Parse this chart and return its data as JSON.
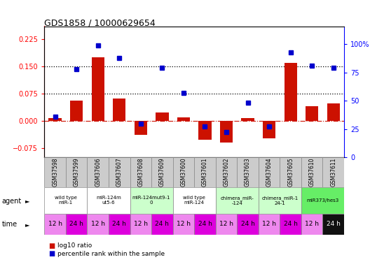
{
  "title": "GDS1858 / 10000629654",
  "samples": [
    "GSM37598",
    "GSM37599",
    "GSM37606",
    "GSM37607",
    "GSM37608",
    "GSM37609",
    "GSM37600",
    "GSM37601",
    "GSM37602",
    "GSM37603",
    "GSM37604",
    "GSM37605",
    "GSM37610",
    "GSM37611"
  ],
  "log10_ratio": [
    0.008,
    0.055,
    0.175,
    0.062,
    -0.038,
    0.022,
    0.01,
    -0.052,
    -0.06,
    0.008,
    -0.048,
    0.16,
    0.04,
    0.048
  ],
  "percentile_rank": [
    36,
    78,
    99,
    88,
    30,
    79,
    57,
    27,
    22,
    48,
    27,
    93,
    81,
    79
  ],
  "agents": [
    {
      "label": "wild type\nmiR-1",
      "cols": [
        0,
        1
      ],
      "color": "#ffffff"
    },
    {
      "label": "miR-124m\nut5-6",
      "cols": [
        2,
        3
      ],
      "color": "#ffffff"
    },
    {
      "label": "miR-124mut9-1\n0",
      "cols": [
        4,
        5
      ],
      "color": "#ccffcc"
    },
    {
      "label": "wild type\nmiR-124",
      "cols": [
        6,
        7
      ],
      "color": "#ffffff"
    },
    {
      "label": "chimera_miR-\n-124",
      "cols": [
        8,
        9
      ],
      "color": "#ccffcc"
    },
    {
      "label": "chimera_miR-1\n24-1",
      "cols": [
        10,
        11
      ],
      "color": "#ccffcc"
    },
    {
      "label": "miR373/hes3",
      "cols": [
        12,
        13
      ],
      "color": "#66ee66"
    }
  ],
  "time_labels": [
    "12 h",
    "24 h",
    "12 h",
    "24 h",
    "12 h",
    "24 h",
    "12 h",
    "24 h",
    "12 h",
    "24 h",
    "12 h",
    "24 h",
    "12 h",
    "24 h"
  ],
  "time_bg_colors": [
    "#ee88ee",
    "#dd00dd",
    "#ee88ee",
    "#dd00dd",
    "#ee88ee",
    "#dd00dd",
    "#ee88ee",
    "#dd00dd",
    "#ee88ee",
    "#dd00dd",
    "#ee88ee",
    "#dd00dd",
    "#ee88ee",
    "#111111"
  ],
  "time_text_colors": [
    "#000000",
    "#000000",
    "#000000",
    "#000000",
    "#000000",
    "#000000",
    "#000000",
    "#000000",
    "#000000",
    "#000000",
    "#000000",
    "#000000",
    "#000000",
    "#ffffff"
  ],
  "ylim_left": [
    -0.1,
    0.26
  ],
  "ylim_right": [
    0,
    116
  ],
  "yticks_left": [
    -0.075,
    0.0,
    0.075,
    0.15,
    0.225
  ],
  "yticks_right": [
    0,
    25,
    50,
    75,
    100
  ],
  "bar_color": "#cc1100",
  "dot_color": "#0000cc",
  "dotted_lines": [
    0.075,
    0.15
  ],
  "sample_col_color": "#cccccc",
  "bar_width": 0.6
}
